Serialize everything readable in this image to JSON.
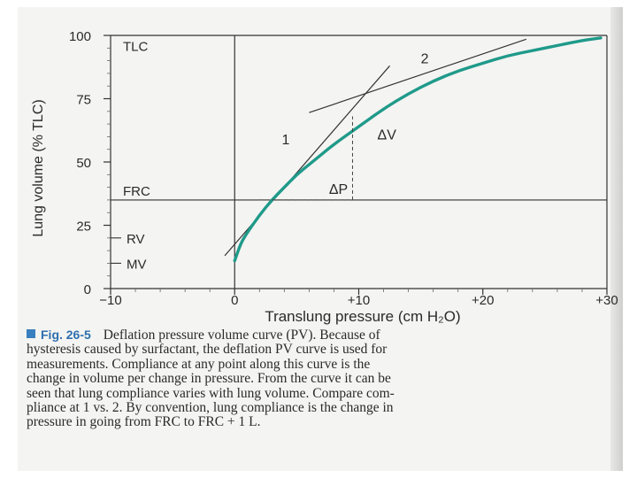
{
  "chart_data": {
    "type": "line",
    "xlabel": "Translung pressure (cm H₂O)",
    "ylabel": "Lung volume (% TLC)",
    "xlim": [
      -10,
      30
    ],
    "ylim": [
      0,
      100
    ],
    "x_ticks": [
      -10,
      0,
      10,
      20,
      30
    ],
    "x_tick_labels": [
      "−10",
      "0",
      "+10",
      "+20",
      "+30"
    ],
    "y_ticks": [
      0,
      25,
      50,
      75,
      100
    ],
    "y_tick_labels": [
      "0",
      "25",
      "50",
      "75",
      "100"
    ],
    "grid": false,
    "series": [
      {
        "name": "",
        "color": "#1f9a8a",
        "x": [
          0,
          0.5,
          1,
          2,
          3,
          4,
          5,
          6,
          7,
          8,
          10,
          12,
          14,
          16,
          18,
          20,
          22,
          24,
          26,
          28,
          29.5
        ],
        "y": [
          11,
          18,
          22,
          29,
          35,
          40,
          45,
          49,
          53,
          57,
          64,
          71,
          77,
          82,
          86,
          89,
          92,
          94,
          96,
          98,
          99
        ]
      }
    ],
    "tangents": [
      {
        "label": "1",
        "x": [
          -0.8,
          12.5
        ],
        "y": [
          13,
          88
        ]
      },
      {
        "label": "2",
        "x": [
          6,
          23.5
        ],
        "y": [
          69.5,
          98.5
        ]
      }
    ],
    "reference_lines": [
      {
        "label": "TLC",
        "y": 96
      },
      {
        "label": "FRC",
        "y": 35
      },
      {
        "label": "RV",
        "y": 20
      },
      {
        "label": "MV",
        "y": 10
      }
    ],
    "annotations": [
      {
        "label": "ΔV",
        "x": 11.5,
        "y": 59
      },
      {
        "label": "ΔP",
        "x": 7.6,
        "y": 37.5
      },
      {
        "label": "1",
        "x": 3.8,
        "y": 57
      },
      {
        "label": "2",
        "x": 15,
        "y": 89
      }
    ],
    "delta": {
      "x_from": 2,
      "x_to": 9.5,
      "y_from": 35,
      "y_to": 68
    }
  },
  "caption": {
    "label": "Fig. 26-5",
    "lines": [
      "Deflation pressure volume curve (PV). Because of",
      "hysteresis caused by surfactant, the deflation PV curve is used for",
      "measurements. Compliance at any point along this curve is the",
      "change in volume per change in pressure. From the curve it can be",
      "seen that lung compliance varies with lung volume. Compare com-",
      "pliance at 1 vs. 2. By convention, lung compliance is the change in",
      "pressure in going from FRC to FRC + 1 L."
    ]
  }
}
